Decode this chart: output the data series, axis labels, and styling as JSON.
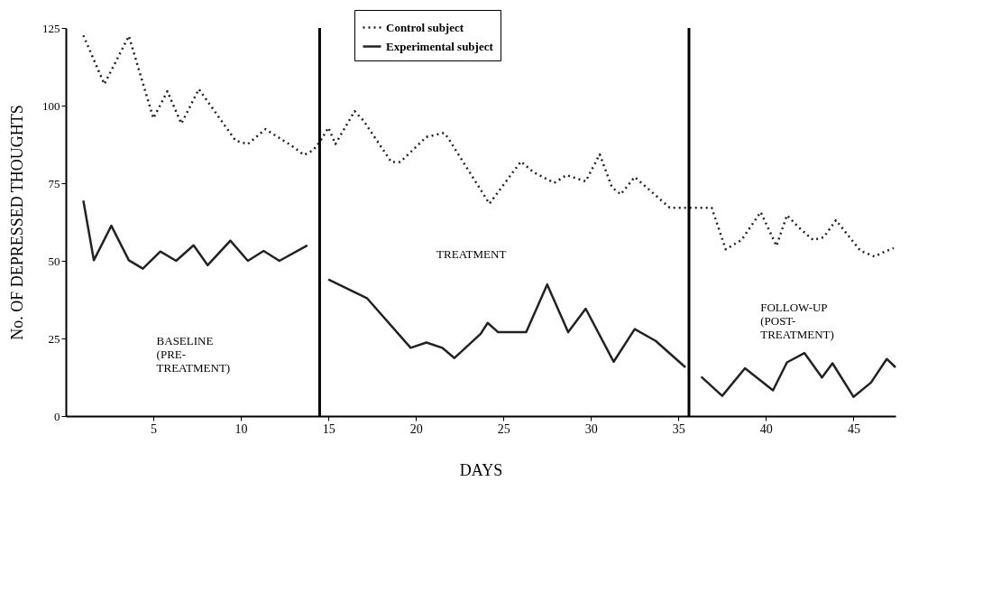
{
  "chart_data": {
    "type": "line",
    "xlabel": "DAYS",
    "ylabel": "No. OF DEPRESSED THOUGHTS",
    "xlim": [
      0,
      47.4
    ],
    "ylim": [
      0,
      125
    ],
    "xticks": [
      5,
      10,
      15,
      20,
      25,
      30,
      35,
      40,
      45
    ],
    "yticks": [
      0,
      25,
      50,
      75,
      100,
      125
    ],
    "grid": false,
    "legend": "top",
    "marker": "none",
    "series": [
      {
        "name": "Control subject",
        "color": "#222222",
        "line_style": "dotted",
        "x": [
          1.0,
          2.2,
          3.6,
          5.0,
          5.8,
          6.6,
          7.6,
          9.7,
          10.4,
          11.4,
          12.9,
          13.6,
          14.1,
          14.5,
          15.0,
          15.4,
          16.5,
          17.0,
          18.6,
          19.1,
          20.6,
          21.6,
          21.8,
          24.2,
          26.0,
          26.7,
          27.9,
          28.6,
          29.7,
          30.5,
          31.2,
          31.7,
          32.5,
          34.5,
          35.6,
          36.9,
          37.7,
          38.6,
          39.7,
          40.6,
          41.2,
          41.9,
          42.7,
          43.3,
          44.0,
          45.4,
          46.2,
          46.8,
          47.3
        ],
        "values": [
          122.6,
          106.9,
          122.4,
          95.9,
          104.6,
          94.2,
          105.3,
          88.7,
          87.6,
          92.4,
          87.1,
          84.1,
          85.5,
          88.2,
          92.9,
          87.6,
          98.2,
          95.2,
          81.8,
          81.8,
          89.9,
          91.2,
          89.9,
          68.4,
          82.0,
          78.6,
          75.1,
          77.6,
          75.6,
          84.3,
          73.7,
          71.4,
          77.0,
          67.1,
          67.1,
          67.1,
          53.7,
          56.7,
          65.7,
          54.8,
          64.7,
          60.6,
          56.7,
          57.6,
          63.1,
          53.2,
          51.4,
          53.0,
          54.1
        ]
      },
      {
        "name": "Experimental subject",
        "color": "#222222",
        "line_style": "solid",
        "x": [
          1.0,
          1.6,
          2.6,
          3.6,
          4.4,
          5.4,
          6.3,
          7.3,
          8.1,
          9.4,
          10.4,
          11.3,
          12.2,
          13.8,
          null,
          15.0,
          17.2,
          19.7,
          20.6,
          21.5,
          22.2,
          23.7,
          24.1,
          24.7,
          26.3,
          27.5,
          28.7,
          29.7,
          31.3,
          32.5,
          33.7,
          35.4,
          null,
          36.3,
          37.5,
          38.8,
          40.4,
          41.2,
          42.2,
          43.2,
          43.8,
          45.0,
          46.0,
          46.9,
          47.4
        ],
        "values": [
          69.4,
          50.2,
          61.3,
          50.2,
          47.5,
          53.0,
          50.0,
          55.0,
          48.6,
          56.5,
          50.0,
          53.2,
          50.0,
          55.0,
          null,
          44.0,
          38.0,
          22.0,
          23.7,
          22.0,
          18.7,
          26.5,
          30.0,
          27.0,
          27.0,
          42.4,
          27.0,
          34.6,
          17.5,
          28.0,
          24.2,
          15.7,
          null,
          12.7,
          6.5,
          15.4,
          8.3,
          17.3,
          20.3,
          12.4,
          17.0,
          6.2,
          10.8,
          18.4,
          15.7
        ]
      }
    ],
    "ref_lines": [
      {
        "axis": "x",
        "value": 14.5,
        "label": null
      },
      {
        "axis": "x",
        "value": 35.6,
        "label": null
      }
    ],
    "annotations": [
      "BASELINE\n(PRE-\nTREATMENT)",
      "TREATMENT",
      "FOLLOW-UP\n(POST-\nTREATMENT)"
    ]
  }
}
